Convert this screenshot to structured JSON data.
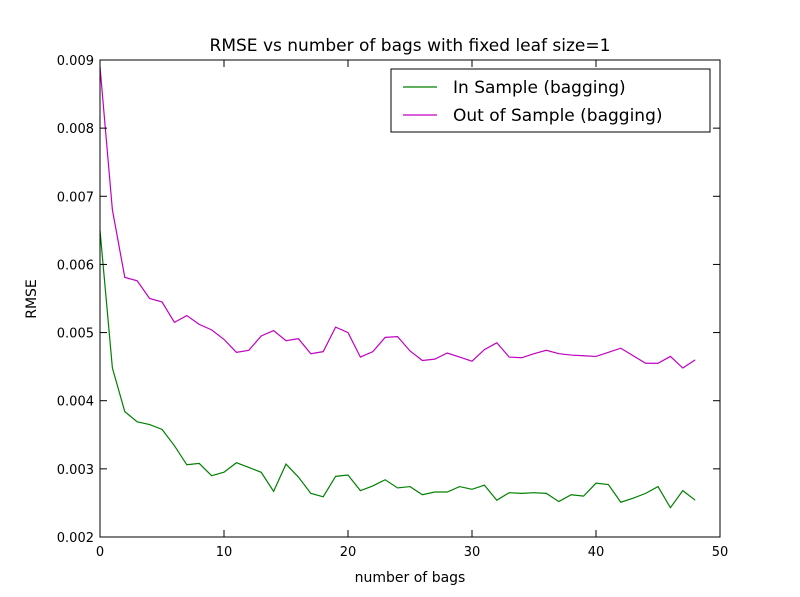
{
  "chart_data": {
    "type": "line",
    "title": "RMSE vs number of bags with fixed leaf size=1",
    "xlabel": "number of bags",
    "ylabel": "RMSE",
    "xlim": [
      0,
      50
    ],
    "ylim": [
      0.002,
      0.009
    ],
    "x_ticks": [
      "0",
      "10",
      "20",
      "30",
      "40",
      "50"
    ],
    "y_ticks": [
      "0.002",
      "0.003",
      "0.004",
      "0.005",
      "0.006",
      "0.007",
      "0.008",
      "0.009"
    ],
    "grid": false,
    "legend_position": "top-right",
    "x": [
      0,
      1,
      2,
      3,
      4,
      5,
      6,
      7,
      8,
      9,
      10,
      11,
      12,
      13,
      14,
      15,
      16,
      17,
      18,
      19,
      20,
      21,
      22,
      23,
      24,
      25,
      26,
      27,
      28,
      29,
      30,
      31,
      32,
      33,
      34,
      35,
      36,
      37,
      38,
      39,
      40,
      41,
      42,
      43,
      44,
      45,
      46,
      47,
      48
    ],
    "series": [
      {
        "name": "In Sample (bagging)",
        "color": "#008000",
        "values": [
          0.0065,
          0.00448,
          0.00384,
          0.00369,
          0.00365,
          0.00358,
          0.00334,
          0.00306,
          0.00308,
          0.0029,
          0.00295,
          0.00309,
          0.00302,
          0.00295,
          0.00267,
          0.00307,
          0.00288,
          0.00264,
          0.00259,
          0.00289,
          0.00291,
          0.00268,
          0.00275,
          0.00284,
          0.00272,
          0.00274,
          0.00262,
          0.00266,
          0.00266,
          0.00274,
          0.0027,
          0.00276,
          0.00254,
          0.00265,
          0.00264,
          0.00265,
          0.00264,
          0.00252,
          0.00262,
          0.0026,
          0.00279,
          0.00277,
          0.00251,
          0.00257,
          0.00264,
          0.00274,
          0.00243,
          0.00268,
          0.00254
        ]
      },
      {
        "name": "Out of Sample (bagging)",
        "color": "#c000c0",
        "values": [
          0.0089,
          0.0068,
          0.00581,
          0.00576,
          0.0055,
          0.00545,
          0.00515,
          0.00525,
          0.00512,
          0.00504,
          0.0049,
          0.00471,
          0.00474,
          0.00495,
          0.00503,
          0.00488,
          0.00491,
          0.00469,
          0.00472,
          0.00508,
          0.005,
          0.00464,
          0.00472,
          0.00493,
          0.00494,
          0.00473,
          0.00459,
          0.00461,
          0.0047,
          0.00464,
          0.00458,
          0.00475,
          0.00485,
          0.00464,
          0.00463,
          0.00469,
          0.00474,
          0.00469,
          0.00467,
          0.00466,
          0.00465,
          0.00471,
          0.00477,
          0.00466,
          0.00455,
          0.00455,
          0.00465,
          0.00448,
          0.0046
        ]
      }
    ]
  }
}
